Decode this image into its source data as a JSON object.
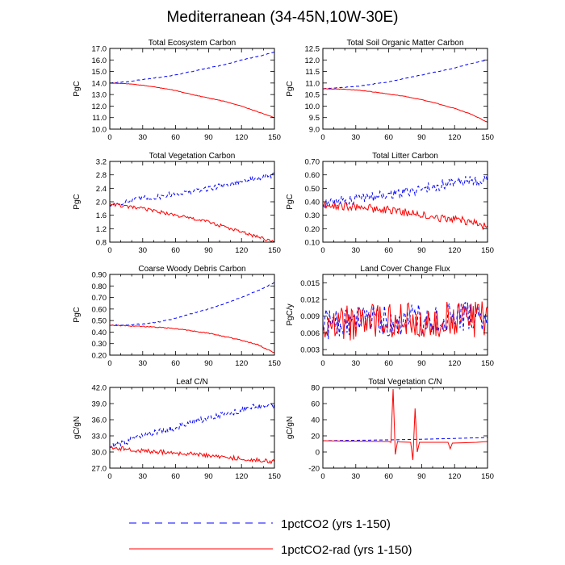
{
  "figure": {
    "title": "Mediterranean (34-45N,10W-30E)",
    "legend": [
      {
        "label": "1pctCO2 (yrs 1-150)",
        "color": "#0000ff",
        "dash": true
      },
      {
        "label": "1pctCO2-rad (yrs 1-150)",
        "color": "#ff0000",
        "dash": false
      }
    ]
  },
  "chart_data": [
    {
      "type": "line",
      "title": "Total Ecosystem Carbon",
      "xlabel": "",
      "ylabel": "PgC",
      "xlim": [
        0,
        150
      ],
      "ylim": [
        10.0,
        17.0
      ],
      "xticks": [
        0,
        30,
        60,
        90,
        120,
        150
      ],
      "yticks": [
        "10.0",
        "11.0",
        "12.0",
        "13.0",
        "14.0",
        "15.0",
        "16.0",
        "17.0"
      ],
      "series": [
        {
          "name": "1pctCO2 (yrs 1-150)",
          "color": "#0000ff",
          "dash": true,
          "noise": 0.03,
          "x": [
            0,
            15,
            30,
            45,
            60,
            75,
            90,
            105,
            120,
            135,
            150
          ],
          "y": [
            14.0,
            14.1,
            14.3,
            14.5,
            14.7,
            15.0,
            15.3,
            15.6,
            16.0,
            16.3,
            16.7
          ]
        },
        {
          "name": "1pctCO2-rad (yrs 1-150)",
          "color": "#ff0000",
          "dash": false,
          "noise": 0.02,
          "x": [
            0,
            15,
            30,
            45,
            60,
            75,
            90,
            105,
            120,
            135,
            150
          ],
          "y": [
            14.0,
            13.95,
            13.8,
            13.6,
            13.35,
            13.0,
            12.7,
            12.4,
            12.0,
            11.5,
            11.0
          ]
        }
      ]
    },
    {
      "type": "line",
      "title": "Total Soil Organic Matter Carbon",
      "xlabel": "",
      "ylabel": "PgC",
      "xlim": [
        0,
        150
      ],
      "ylim": [
        9.0,
        12.5
      ],
      "xticks": [
        0,
        30,
        60,
        90,
        120,
        150
      ],
      "yticks": [
        "9.0",
        "9.5",
        "10.0",
        "10.5",
        "11.0",
        "11.5",
        "12.0",
        "12.5"
      ],
      "series": [
        {
          "name": "1pctCO2 (yrs 1-150)",
          "color": "#0000ff",
          "dash": true,
          "noise": 0.01,
          "x": [
            0,
            15,
            30,
            45,
            60,
            75,
            90,
            105,
            120,
            135,
            150
          ],
          "y": [
            10.75,
            10.8,
            10.85,
            10.95,
            11.05,
            11.2,
            11.35,
            11.5,
            11.65,
            11.85,
            12.0
          ]
        },
        {
          "name": "1pctCO2-rad (yrs 1-150)",
          "color": "#ff0000",
          "dash": false,
          "noise": 0.01,
          "x": [
            0,
            15,
            30,
            45,
            60,
            75,
            90,
            105,
            120,
            135,
            150
          ],
          "y": [
            10.75,
            10.74,
            10.7,
            10.62,
            10.52,
            10.42,
            10.28,
            10.1,
            9.9,
            9.65,
            9.3
          ]
        }
      ]
    },
    {
      "type": "line",
      "title": "Total Vegetation Carbon",
      "xlabel": "",
      "ylabel": "PgC",
      "xlim": [
        0,
        150
      ],
      "ylim": [
        0.8,
        3.2
      ],
      "xticks": [
        0,
        30,
        60,
        90,
        120,
        150
      ],
      "yticks": [
        "0.8",
        "1.2",
        "1.6",
        "2.0",
        "2.4",
        "2.8",
        "3.2"
      ],
      "series": [
        {
          "name": "1pctCO2 (yrs 1-150)",
          "color": "#0000ff",
          "dash": true,
          "noise": 0.08,
          "x": [
            0,
            15,
            30,
            45,
            60,
            75,
            90,
            105,
            120,
            135,
            150
          ],
          "y": [
            1.9,
            2.0,
            2.1,
            2.15,
            2.25,
            2.3,
            2.4,
            2.5,
            2.6,
            2.7,
            2.8
          ]
        },
        {
          "name": "1pctCO2-rad (yrs 1-150)",
          "color": "#ff0000",
          "dash": false,
          "noise": 0.05,
          "x": [
            0,
            15,
            30,
            45,
            60,
            75,
            90,
            105,
            120,
            135,
            150
          ],
          "y": [
            1.95,
            1.85,
            1.8,
            1.7,
            1.6,
            1.5,
            1.4,
            1.25,
            1.1,
            0.95,
            0.8
          ]
        }
      ]
    },
    {
      "type": "line",
      "title": "Total Litter Carbon",
      "xlabel": "",
      "ylabel": "PgC",
      "xlim": [
        0,
        150
      ],
      "ylim": [
        0.1,
        0.7
      ],
      "xticks": [
        0,
        30,
        60,
        90,
        120,
        150
      ],
      "yticks": [
        "0.10",
        "0.20",
        "0.30",
        "0.40",
        "0.50",
        "0.60",
        "0.70"
      ],
      "series": [
        {
          "name": "1pctCO2 (yrs 1-150)",
          "color": "#0000ff",
          "dash": true,
          "noise": 0.04,
          "x": [
            0,
            15,
            30,
            45,
            60,
            75,
            90,
            105,
            120,
            135,
            150
          ],
          "y": [
            0.38,
            0.4,
            0.42,
            0.44,
            0.46,
            0.47,
            0.5,
            0.52,
            0.55,
            0.56,
            0.57
          ]
        },
        {
          "name": "1pctCO2-rad (yrs 1-150)",
          "color": "#ff0000",
          "dash": false,
          "noise": 0.03,
          "x": [
            0,
            15,
            30,
            45,
            60,
            75,
            90,
            105,
            120,
            135,
            150
          ],
          "y": [
            0.38,
            0.37,
            0.36,
            0.35,
            0.34,
            0.32,
            0.3,
            0.28,
            0.27,
            0.25,
            0.21
          ]
        }
      ]
    },
    {
      "type": "line",
      "title": "Coarse Woody Debris Carbon",
      "xlabel": "",
      "ylabel": "PgC",
      "xlim": [
        0,
        150
      ],
      "ylim": [
        0.2,
        0.9
      ],
      "xticks": [
        0,
        30,
        60,
        90,
        120,
        150
      ],
      "yticks": [
        "0.20",
        "0.30",
        "0.40",
        "0.50",
        "0.60",
        "0.70",
        "0.80",
        "0.90"
      ],
      "series": [
        {
          "name": "1pctCO2 (yrs 1-150)",
          "color": "#0000ff",
          "dash": true,
          "noise": 0.004,
          "x": [
            0,
            15,
            30,
            45,
            60,
            75,
            90,
            105,
            120,
            135,
            150
          ],
          "y": [
            0.46,
            0.46,
            0.47,
            0.49,
            0.52,
            0.56,
            0.6,
            0.65,
            0.7,
            0.76,
            0.83
          ]
        },
        {
          "name": "1pctCO2-rad (yrs 1-150)",
          "color": "#ff0000",
          "dash": false,
          "noise": 0.004,
          "x": [
            0,
            15,
            30,
            45,
            60,
            75,
            90,
            105,
            120,
            135,
            150
          ],
          "y": [
            0.46,
            0.455,
            0.45,
            0.44,
            0.43,
            0.41,
            0.39,
            0.36,
            0.33,
            0.29,
            0.22
          ]
        }
      ]
    },
    {
      "type": "line",
      "title": "Land Cover Change Flux",
      "xlabel": "",
      "ylabel": "PgC/y",
      "xlim": [
        0,
        150
      ],
      "ylim": [
        0.002,
        0.0165
      ],
      "xticks": [
        0,
        30,
        60,
        90,
        120,
        150
      ],
      "yticks": [
        "0.003",
        "0.006",
        "0.009",
        "0.012",
        "0.015"
      ],
      "ytick_values": [
        0.003,
        0.006,
        0.009,
        0.012,
        0.015
      ],
      "series": [
        {
          "name": "1pctCO2 (yrs 1-150)",
          "color": "#0000ff",
          "dash": true,
          "noise": 0.0028,
          "seed": 7,
          "x": [
            0,
            15,
            30,
            45,
            60,
            75,
            90,
            105,
            120,
            135,
            150
          ],
          "y": [
            0.0075,
            0.0078,
            0.008,
            0.0082,
            0.0083,
            0.0085,
            0.0085,
            0.0086,
            0.0087,
            0.0088,
            0.009
          ]
        },
        {
          "name": "1pctCO2-rad (yrs 1-150)",
          "color": "#ff0000",
          "dash": false,
          "noise": 0.0032,
          "seed": 13,
          "x": [
            0,
            15,
            30,
            45,
            60,
            75,
            90,
            105,
            120,
            135,
            150
          ],
          "y": [
            0.0075,
            0.0077,
            0.0078,
            0.008,
            0.0081,
            0.0082,
            0.0083,
            0.0083,
            0.0084,
            0.0084,
            0.0085
          ]
        }
      ]
    },
    {
      "type": "line",
      "title": "Leaf C/N",
      "xlabel": "",
      "ylabel": "gC/gN",
      "xlim": [
        0,
        150
      ],
      "ylim": [
        27.0,
        42.0
      ],
      "xticks": [
        0,
        30,
        60,
        90,
        120,
        150
      ],
      "yticks": [
        "27.0",
        "30.0",
        "33.0",
        "36.0",
        "39.0",
        "42.0"
      ],
      "series": [
        {
          "name": "1pctCO2 (yrs 1-150)",
          "color": "#0000ff",
          "dash": true,
          "noise": 0.6,
          "x": [
            0,
            15,
            30,
            45,
            60,
            75,
            90,
            105,
            120,
            135,
            150
          ],
          "y": [
            31.0,
            31.8,
            33.0,
            33.8,
            34.5,
            35.5,
            36.3,
            37.0,
            37.8,
            38.5,
            38.5
          ]
        },
        {
          "name": "1pctCO2-rad (yrs 1-150)",
          "color": "#ff0000",
          "dash": false,
          "noise": 0.4,
          "x": [
            0,
            15,
            30,
            45,
            60,
            75,
            90,
            105,
            120,
            135,
            150
          ],
          "y": [
            31.0,
            30.5,
            30.2,
            30.0,
            29.8,
            29.6,
            29.3,
            29.0,
            28.8,
            28.5,
            28.2
          ]
        }
      ]
    },
    {
      "type": "line",
      "title": "Total Vegetation C/N",
      "xlabel": "",
      "ylabel": "gC/gN",
      "xlim": [
        0,
        150
      ],
      "ylim": [
        -20,
        80
      ],
      "xticks": [
        0,
        30,
        60,
        90,
        120,
        150
      ],
      "yticks": [
        "-20",
        "0",
        "20",
        "40",
        "60",
        "80"
      ],
      "ytick_values": [
        -20,
        0,
        20,
        40,
        60,
        80
      ],
      "series": [
        {
          "name": "1pctCO2 (yrs 1-150)",
          "color": "#0000ff",
          "dash": true,
          "noise": 0.0,
          "x": [
            0,
            30,
            60,
            90,
            120,
            150
          ],
          "y": [
            14,
            14.5,
            15,
            15.8,
            16.8,
            18
          ]
        },
        {
          "name": "1pctCO2-rad (yrs 1-150)",
          "color": "#ff0000",
          "dash": false,
          "noise": 0.0,
          "x": [
            0,
            20,
            40,
            60,
            62,
            64,
            66,
            68,
            70,
            80,
            82,
            84,
            86,
            88,
            100,
            114,
            116,
            118,
            130,
            140,
            150
          ],
          "y": [
            14,
            13.5,
            13.2,
            13,
            12,
            78,
            -3,
            13,
            12.5,
            12,
            -10,
            54,
            0,
            12,
            12,
            12,
            4,
            11,
            11.5,
            12,
            13
          ]
        }
      ]
    }
  ]
}
